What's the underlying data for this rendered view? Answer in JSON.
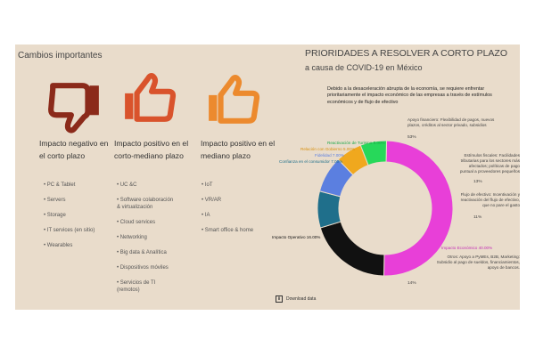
{
  "left": {
    "title": "Cambios importantes",
    "columns": [
      {
        "heading": "Impacto negativo en el corto plazo",
        "icon": "thumbs-down-icon",
        "color": "#8b2a1a",
        "items": [
          "PC & Tablet",
          "Servers",
          "Storage",
          "IT services (en sitio)",
          "Wearables"
        ]
      },
      {
        "heading": "Impacto positivo en el corto-mediano plazo",
        "icon": "thumbs-up-icon",
        "color": "#d9532c",
        "items": [
          "UC &C",
          "Software colaboración\n& virtualización",
          "Cloud services",
          "Networking",
          "Big data & Analítica",
          "Dispositivos móviles",
          "Servicios de TI\n(remotos)"
        ]
      },
      {
        "heading": "Impacto positivo en el mediano plazo",
        "icon": "thumbs-up-icon",
        "color": "#ec8a2e",
        "items": [
          "IoT",
          "VR/AR",
          "IA",
          "Smart office & home"
        ]
      }
    ]
  },
  "right": {
    "title": "PRIORIDADES A RESOLVER A CORTO PLAZO",
    "subtitle": "a causa de COVID-19 en México",
    "intro": "Debido a la desaceleración abrupta de la economía, se requiere enfrentar prioritariamente el impacto económico de las empresas a través de estímulos económicos y de flujo de efectivo",
    "annotations": {
      "financiero": "Apoyo financiero: Flexibilidad de pagos, nuevos plazos, créditos al sector privado, subsidios",
      "financiero_pct": "53%",
      "fiscales": "Estímulos fiscales: Facilidades tributarias para los sectores más afectados; políticas de pago puntual a proveedores pequeños",
      "fiscales_pct": "13%",
      "flujo": "Flujo de efectivo: Incentivación y reactivación del flujo de efectivo, que no pare el gasto",
      "flujo_pct": "11%",
      "otros": "Otros: Apoyo a PyMEs, B2B, Marketing: Subsidio al pago de sueldos, financiamientos, apoyo de bancos.",
      "otros_pct": "14%"
    },
    "download": "Download data",
    "download_icon": "download-icon"
  },
  "chart_data": {
    "type": "pie",
    "categories": [
      "Impacto Económico",
      "Impacto Operativo",
      "Confianza en el consumidor",
      "Fidelidad",
      "Relación con Gobierno",
      "Reactivación de Turismo"
    ],
    "values": [
      40.0,
      16.0,
      7.0,
      7.0,
      5.0,
      5.0
    ],
    "labels": [
      "Impacto Económico 40.00%",
      "Impacto Operativo 16.00%",
      "Confianza en el consumidor 7.00%",
      "Fidelidad 7.00%",
      "Relación con Gobierno 5.00%",
      "Reactivación de Turismo 5.00%"
    ],
    "colors": [
      "#e83fd8",
      "#111111",
      "#1f6f8b",
      "#5b7fe0",
      "#f0a81e",
      "#27d85a"
    ]
  }
}
